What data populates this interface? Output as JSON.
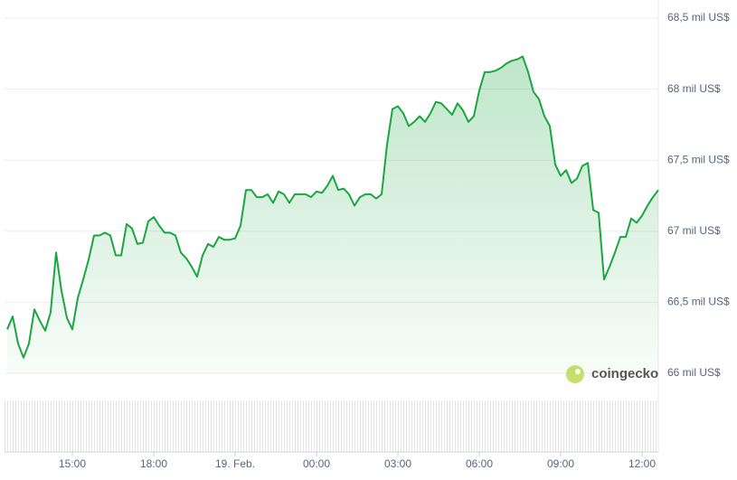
{
  "chart_data": {
    "type": "line",
    "watermark": "coingecko",
    "x": [
      12.6,
      12.8,
      13.0,
      13.2,
      13.4,
      13.6,
      13.8,
      14.0,
      14.2,
      14.4,
      14.6,
      14.8,
      15.0,
      15.2,
      15.4,
      15.6,
      15.8,
      16.0,
      16.2,
      16.4,
      16.6,
      16.8,
      17.0,
      17.2,
      17.4,
      17.6,
      17.8,
      18.0,
      18.2,
      18.4,
      18.6,
      18.8,
      19.0,
      19.2,
      19.4,
      19.6,
      19.8,
      20.0,
      20.2,
      20.4,
      20.6,
      20.8,
      21.0,
      21.2,
      21.4,
      21.6,
      21.8,
      22.0,
      22.2,
      22.4,
      22.6,
      22.8,
      23.0,
      23.2,
      23.4,
      23.6,
      23.8,
      24.0,
      24.2,
      24.4,
      24.6,
      24.8,
      25.0,
      25.2,
      25.4,
      25.6,
      25.8,
      26.0,
      26.2,
      26.4,
      26.6,
      26.8,
      27.0,
      27.2,
      27.4,
      27.6,
      27.8,
      28.0,
      28.2,
      28.4,
      28.6,
      28.8,
      29.0,
      29.2,
      29.4,
      29.6,
      29.8,
      30.0,
      30.2,
      30.4,
      30.6,
      30.8,
      31.0,
      31.2,
      31.4,
      31.6,
      31.8,
      32.0,
      32.2,
      32.4,
      32.6,
      32.8,
      33.0,
      33.2,
      33.4,
      33.6,
      33.8,
      34.0,
      34.2,
      34.4,
      34.6,
      34.8,
      35.0,
      35.2,
      35.4,
      35.6,
      35.8,
      36.0,
      36.2,
      36.4,
      36.6
    ],
    "series": [
      {
        "color": "#1aa640",
        "values": [
          66.31,
          66.4,
          66.21,
          66.11,
          66.21,
          66.45,
          66.37,
          66.3,
          66.43,
          66.85,
          66.58,
          66.39,
          66.31,
          66.53,
          66.66,
          66.8,
          66.97,
          66.97,
          66.99,
          66.97,
          66.83,
          66.83,
          67.05,
          67.02,
          66.91,
          66.92,
          67.07,
          67.1,
          67.04,
          66.99,
          66.99,
          66.97,
          66.85,
          66.81,
          66.75,
          66.68,
          66.83,
          66.91,
          66.89,
          66.96,
          66.94,
          66.94,
          66.95,
          67.04,
          67.29,
          67.29,
          67.24,
          67.24,
          67.26,
          67.2,
          67.28,
          67.26,
          67.2,
          67.26,
          67.26,
          67.26,
          67.24,
          67.28,
          67.27,
          67.32,
          67.39,
          67.29,
          67.3,
          67.26,
          67.18,
          67.24,
          67.26,
          67.26,
          67.23,
          67.26,
          67.61,
          67.86,
          67.88,
          67.83,
          67.74,
          67.77,
          67.81,
          67.77,
          67.83,
          67.91,
          67.9,
          67.86,
          67.82,
          67.9,
          67.85,
          67.77,
          67.81,
          67.99,
          68.12,
          68.12,
          68.13,
          68.15,
          68.18,
          68.2,
          68.21,
          68.23,
          68.12,
          67.98,
          67.93,
          67.81,
          67.74,
          67.47,
          67.39,
          67.43,
          67.34,
          67.37,
          67.46,
          67.48,
          67.15,
          67.13,
          66.66,
          66.75,
          66.85,
          66.96,
          66.96,
          67.09,
          67.06,
          67.11,
          67.18,
          67.24,
          67.29
        ]
      }
    ],
    "xlim": [
      12.5,
      36.6
    ],
    "xticks": [
      {
        "value": 15,
        "label": "15:00"
      },
      {
        "value": 18,
        "label": "18:00"
      },
      {
        "value": 21,
        "label": "19. Feb."
      },
      {
        "value": 24,
        "label": "00:00"
      },
      {
        "value": 27,
        "label": "03:00"
      },
      {
        "value": 30,
        "label": "06:00"
      },
      {
        "value": 33,
        "label": "09:00"
      },
      {
        "value": 36,
        "label": "12:00"
      }
    ],
    "ylim": [
      66,
      68.5
    ],
    "yticks": [
      {
        "value": 66,
        "label": "66 mil US$"
      },
      {
        "value": 66.5,
        "label": "66,5 mil US$"
      },
      {
        "value": 67,
        "label": "67 mil US$"
      },
      {
        "value": 67.5,
        "label": "67,5 mil US$"
      },
      {
        "value": 68,
        "label": "68 mil US$"
      },
      {
        "value": 68.5,
        "label": "68,5 mil US$"
      }
    ],
    "grid": true
  }
}
